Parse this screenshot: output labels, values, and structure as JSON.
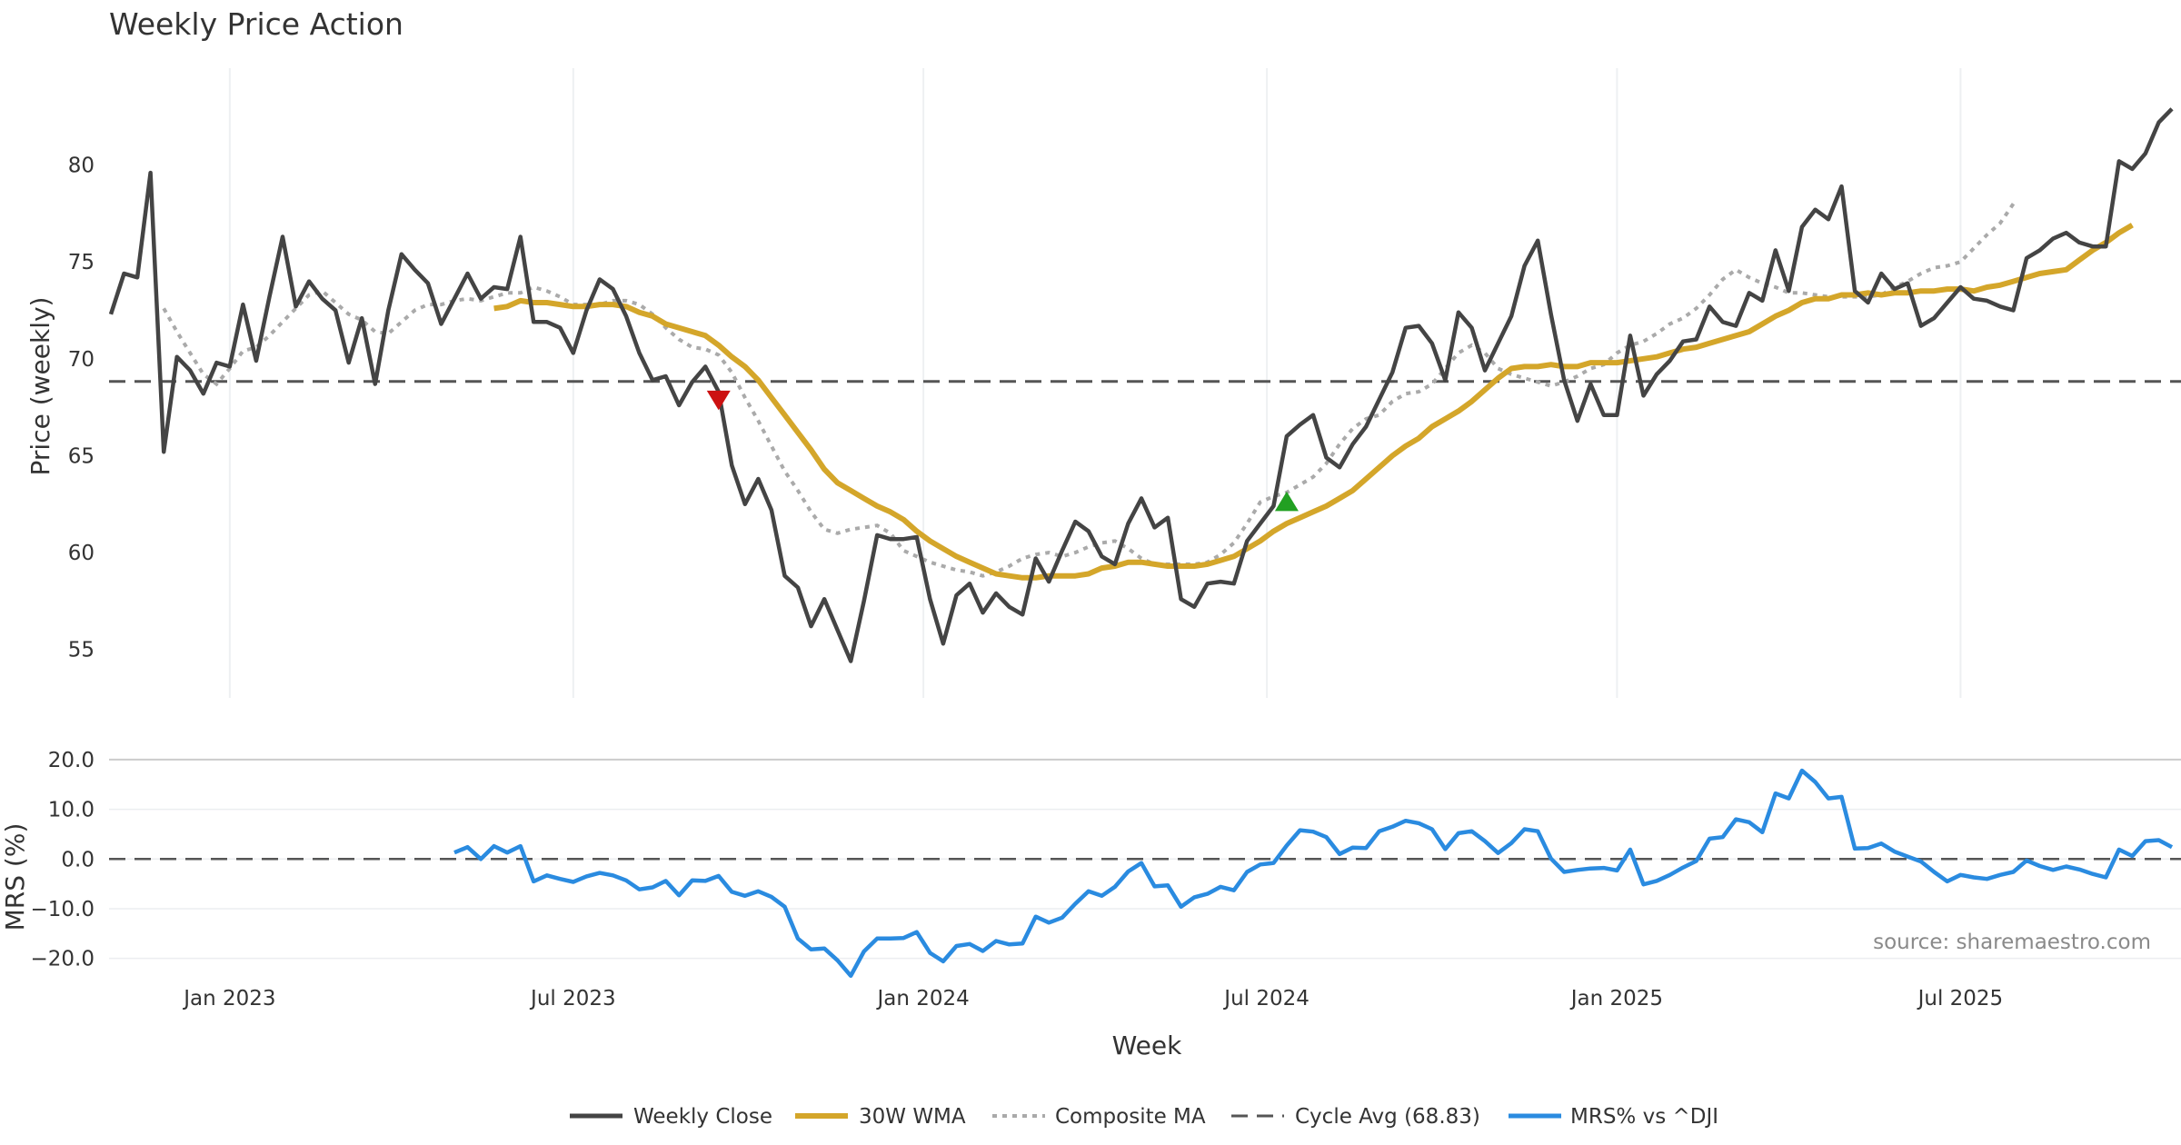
{
  "chart_data": [
    {
      "type": "line",
      "title": "Weekly Price Action",
      "xlabel": "",
      "ylabel": "Price (weekly)",
      "ylim": [
        52.5,
        85.0
      ],
      "yticks": [
        "55",
        "60",
        "65",
        "70",
        "75",
        "80"
      ],
      "grid": true,
      "series": [
        {
          "name": "Weekly Close",
          "color": "#444444",
          "week_start": 0,
          "values": [
            72.3,
            74.4,
            74.2,
            79.6,
            65.2,
            70.1,
            69.4,
            68.2,
            69.8,
            69.6,
            72.8,
            69.9,
            73.2,
            76.3,
            72.7,
            74.0,
            73.1,
            72.5,
            69.8,
            72.1,
            68.7,
            72.5,
            75.4,
            74.6,
            73.9,
            71.8,
            73.1,
            74.4,
            73.1,
            73.7,
            73.6,
            76.3,
            71.9,
            71.9,
            71.6,
            70.3,
            72.5,
            74.1,
            73.6,
            72.2,
            70.3,
            68.9,
            69.1,
            67.6,
            68.8,
            69.6,
            68.3,
            64.5,
            62.5,
            63.8,
            62.2,
            58.8,
            58.2,
            56.2,
            57.6,
            56.0,
            54.4,
            57.5,
            60.9,
            60.7,
            60.7,
            60.8,
            57.6,
            55.3,
            57.8,
            58.4,
            56.9,
            57.9,
            57.2,
            56.8,
            59.7,
            58.5,
            60.1,
            61.6,
            61.1,
            59.8,
            59.4,
            61.5,
            62.8,
            61.3,
            61.8,
            57.6,
            57.2,
            58.4,
            58.5,
            58.4,
            60.6,
            61.5,
            62.4,
            66.0,
            66.6,
            67.1,
            64.9,
            64.4,
            65.6,
            66.5,
            67.9,
            69.3,
            71.6,
            71.7,
            70.8,
            68.9,
            72.4,
            71.6,
            69.4,
            70.8,
            72.2,
            74.8,
            76.1,
            72.3,
            68.9,
            66.8,
            68.7,
            67.1,
            67.1,
            71.2,
            68.1,
            69.2,
            69.9,
            70.9,
            71.0,
            72.7,
            71.9,
            71.7,
            73.4,
            73.0,
            75.6,
            73.5,
            76.8,
            77.7,
            77.2,
            78.9,
            73.5,
            72.9,
            74.4,
            73.6,
            73.9,
            71.7,
            72.1,
            72.9,
            73.7,
            73.1,
            73.0,
            72.7,
            72.5,
            75.2,
            75.6,
            76.2,
            76.5,
            76.0,
            75.8,
            75.8,
            80.2,
            79.8,
            80.6,
            82.2,
            82.9
          ]
        },
        {
          "name": "30W WMA",
          "color": "#D4A62A",
          "week_start": 29,
          "values": [
            72.6,
            72.7,
            73.0,
            72.9,
            72.9,
            72.8,
            72.7,
            72.7,
            72.8,
            72.8,
            72.7,
            72.4,
            72.2,
            71.8,
            71.6,
            71.4,
            71.2,
            70.7,
            70.1,
            69.6,
            68.9,
            68.0,
            67.1,
            66.2,
            65.3,
            64.3,
            63.6,
            63.2,
            62.8,
            62.4,
            62.1,
            61.7,
            61.1,
            60.6,
            60.2,
            59.8,
            59.5,
            59.2,
            58.9,
            58.8,
            58.7,
            58.7,
            58.8,
            58.8,
            58.8,
            58.9,
            59.2,
            59.3,
            59.5,
            59.5,
            59.4,
            59.3,
            59.3,
            59.3,
            59.4,
            59.6,
            59.8,
            60.2,
            60.6,
            61.1,
            61.5,
            61.8,
            62.1,
            62.4,
            62.8,
            63.2,
            63.8,
            64.4,
            65.0,
            65.5,
            65.9,
            66.5,
            66.9,
            67.3,
            67.8,
            68.4,
            69.0,
            69.5,
            69.6,
            69.6,
            69.7,
            69.6,
            69.6,
            69.8,
            69.8,
            69.8,
            69.9,
            70.0,
            70.1,
            70.3,
            70.5,
            70.6,
            70.8,
            71.0,
            71.2,
            71.4,
            71.8,
            72.2,
            72.5,
            72.9,
            73.1,
            73.1,
            73.3,
            73.3,
            73.4,
            73.3,
            73.4,
            73.4,
            73.5,
            73.5,
            73.6,
            73.6,
            73.5,
            73.7,
            73.8,
            74.0,
            74.2,
            74.4,
            74.5,
            74.6,
            75.1,
            75.6,
            76.0,
            76.5,
            76.9
          ]
        },
        {
          "name": "Composite MA",
          "color": "#AAAAAA",
          "week_start": 4,
          "values": [
            72.6,
            71.4,
            70.3,
            69.2,
            68.7,
            69.5,
            70.4,
            70.6,
            71.2,
            71.9,
            72.6,
            73.3,
            73.5,
            72.9,
            72.3,
            72.0,
            71.4,
            71.3,
            71.9,
            72.5,
            72.8,
            72.8,
            73.0,
            73.1,
            73.0,
            73.2,
            73.4,
            73.4,
            73.7,
            73.5,
            73.2,
            72.8,
            72.8,
            72.8,
            73.0,
            73.0,
            72.8,
            72.3,
            71.6,
            71.0,
            70.6,
            70.5,
            70.2,
            69.3,
            68.0,
            66.8,
            65.5,
            64.2,
            63.2,
            62.1,
            61.2,
            61.0,
            61.2,
            61.3,
            61.4,
            61.0,
            60.1,
            59.8,
            59.5,
            59.3,
            59.1,
            59.0,
            58.8,
            59.0,
            59.3,
            59.7,
            59.9,
            60.0,
            59.8,
            60.0,
            60.3,
            60.5,
            60.6,
            60.2,
            59.7,
            59.4,
            59.4,
            59.4,
            59.4,
            59.5,
            59.9,
            60.5,
            61.5,
            62.6,
            62.9,
            63.1,
            63.5,
            63.9,
            64.6,
            65.6,
            66.4,
            66.9,
            67.1,
            67.8,
            68.2,
            68.3,
            68.7,
            69.5,
            70.3,
            70.7,
            70.3,
            69.5,
            69.2,
            69.0,
            68.8,
            68.6,
            68.8,
            69.1,
            69.5,
            69.7,
            70.3,
            70.7,
            70.9,
            71.3,
            71.8,
            72.1,
            72.6,
            73.3,
            74.1,
            74.6,
            74.2,
            73.9,
            73.7,
            73.4,
            73.4,
            73.3,
            73.2,
            73.2,
            73.2,
            73.2,
            73.3,
            73.7,
            74.0,
            74.4,
            74.7,
            74.8,
            75.0,
            75.7,
            76.4,
            77.0,
            78.0
          ]
        },
        {
          "name": "Cycle Avg (68.83)",
          "color": "#555555",
          "value": 68.83
        }
      ],
      "markers": [
        {
          "type": "sell",
          "week": 46,
          "value": 67.9,
          "color": "#CC1111"
        },
        {
          "type": "buy",
          "week": 89,
          "value": 62.6,
          "color": "#22A022"
        }
      ]
    },
    {
      "type": "line",
      "title": "",
      "xlabel": "Week",
      "ylabel": "MRS (%)",
      "ylim": [
        -25.0,
        22.0
      ],
      "yticks": [
        "20.0",
        "10.0",
        "0.0",
        "−10.0",
        "−20.0"
      ],
      "reference_line": 0.0,
      "x_ticks": [
        {
          "label": "Jan 2023",
          "week": 9
        },
        {
          "label": "Jul 2023",
          "week": 35
        },
        {
          "label": "Jan 2024",
          "week": 61.5
        },
        {
          "label": "Jul 2024",
          "week": 87.5
        },
        {
          "label": "Jan 2025",
          "week": 114
        },
        {
          "label": "Jul 2025",
          "week": 140
        }
      ],
      "series": [
        {
          "name": "MRS% vs ^DJI",
          "color": "#2A8BE0",
          "week_start": 26,
          "values": [
            1.3,
            2.4,
            0.0,
            2.6,
            1.3,
            2.6,
            -4.5,
            -3.3,
            -4.0,
            -4.6,
            -3.5,
            -2.8,
            -3.3,
            -4.3,
            -6.1,
            -5.7,
            -4.4,
            -7.3,
            -4.3,
            -4.4,
            -3.4,
            -6.6,
            -7.4,
            -6.5,
            -7.6,
            -9.6,
            -16.0,
            -18.2,
            -18.0,
            -20.4,
            -23.5,
            -18.6,
            -16.0,
            -16.0,
            -15.9,
            -14.7,
            -18.9,
            -20.6,
            -17.5,
            -17.1,
            -18.5,
            -16.5,
            -17.2,
            -17.0,
            -11.6,
            -12.8,
            -11.8,
            -9.0,
            -6.5,
            -7.4,
            -5.6,
            -2.5,
            -0.8,
            -5.5,
            -5.3,
            -9.6,
            -7.7,
            -7.0,
            -5.6,
            -6.3,
            -2.6,
            -1.1,
            -0.8,
            2.7,
            5.8,
            5.5,
            4.4,
            1.0,
            2.3,
            2.2,
            5.6,
            6.5,
            7.7,
            7.2,
            6.0,
            2.0,
            5.2,
            5.6,
            3.6,
            1.2,
            3.2,
            6.0,
            5.6,
            0.1,
            -2.6,
            -2.2,
            -1.9,
            -1.8,
            -2.3,
            1.9,
            -5.1,
            -4.4,
            -3.2,
            -1.7,
            -0.4,
            4.1,
            4.4,
            8.0,
            7.4,
            5.4,
            13.2,
            12.2,
            17.8,
            15.5,
            12.2,
            12.5,
            2.1,
            2.2,
            3.1,
            1.5,
            0.5,
            -0.5,
            -2.6,
            -4.5,
            -3.2,
            -3.7,
            -4.0,
            -3.2,
            -2.6,
            -0.3,
            -1.4,
            -2.2,
            -1.5,
            -2.1,
            -3.0,
            -3.7,
            1.9,
            0.6,
            3.6,
            3.8,
            2.4
          ]
        }
      ],
      "source_note": "source: sharemaestro.com"
    }
  ]
}
